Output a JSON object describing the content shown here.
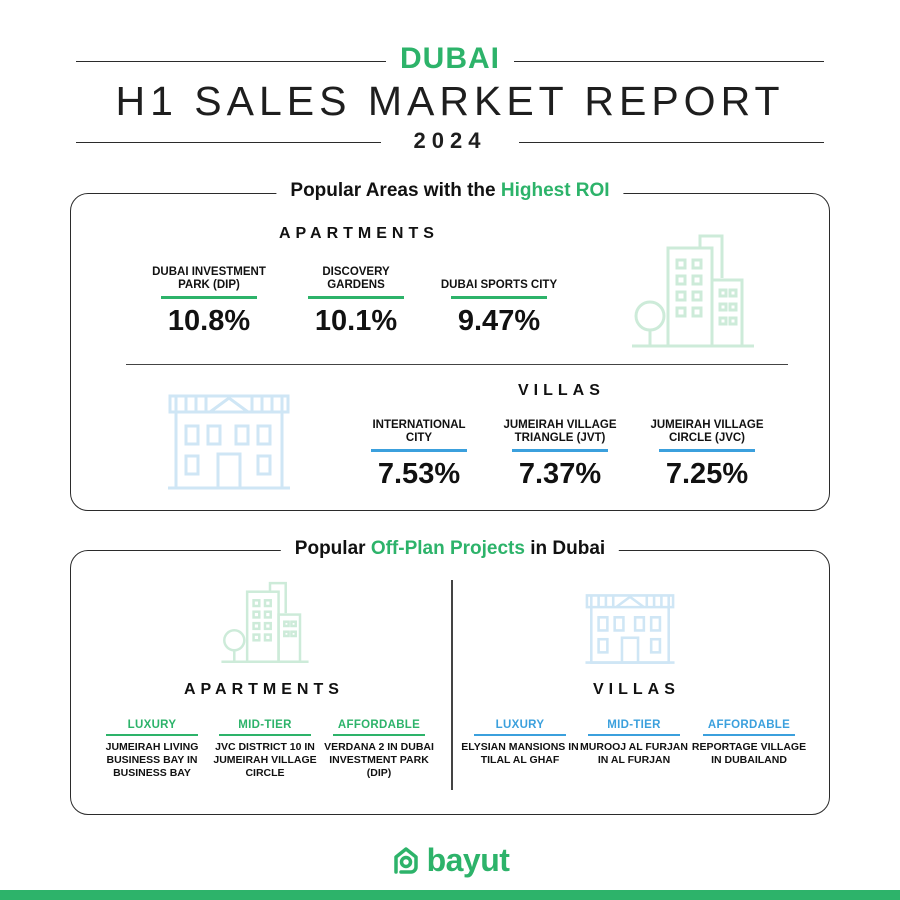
{
  "header": {
    "city": "DUBAI",
    "title": "H1 SALES MARKET REPORT",
    "year": "2024"
  },
  "roi_section": {
    "title_prefix": "Popular Areas with the ",
    "title_highlight": "Highest ROI",
    "apartments": {
      "heading": "APARTMENTS",
      "items": [
        {
          "name": "DUBAI INVESTMENT PARK (DIP)",
          "value": "10.8%"
        },
        {
          "name": "DISCOVERY GARDENS",
          "value": "10.1%"
        },
        {
          "name": "DUBAI SPORTS CITY",
          "value": "9.47%"
        }
      ]
    },
    "villas": {
      "heading": "VILLAS",
      "items": [
        {
          "name": "INTERNATIONAL CITY",
          "value": "7.53%"
        },
        {
          "name": "JUMEIRAH VILLAGE TRIANGLE (JVT)",
          "value": "7.37%"
        },
        {
          "name": "JUMEIRAH VILLAGE CIRCLE (JVC)",
          "value": "7.25%"
        }
      ]
    }
  },
  "offplan_section": {
    "title_prefix": "Popular ",
    "title_highlight": "Off-Plan Projects",
    "title_suffix": " in Dubai",
    "apartments": {
      "heading": "APARTMENTS",
      "items": [
        {
          "tier": "LUXURY",
          "name": "JUMEIRAH LIVING BUSINESS BAY IN BUSINESS BAY"
        },
        {
          "tier": "MID-TIER",
          "name": "JVC DISTRICT 10 IN JUMEIRAH VILLAGE CIRCLE"
        },
        {
          "tier": "AFFORDABLE",
          "name": "VERDANA 2 IN DUBAI INVESTMENT PARK (DIP)"
        }
      ]
    },
    "villas": {
      "heading": "VILLAS",
      "items": [
        {
          "tier": "LUXURY",
          "name": "ELYSIAN MANSIONS IN TILAL AL GHAF"
        },
        {
          "tier": "MID-TIER",
          "name": "MUROOJ AL FURJAN IN AL FURJAN"
        },
        {
          "tier": "AFFORDABLE",
          "name": "REPORTAGE VILLAGE IN DUBAILAND"
        }
      ]
    }
  },
  "brand": {
    "name": "bayut",
    "icon": "bayut-logo-icon"
  },
  "colors": {
    "green": "#2db36a",
    "blue": "#3ba0dd",
    "icon_green": "#cdebd9",
    "icon_blue": "#cfe6f5"
  }
}
